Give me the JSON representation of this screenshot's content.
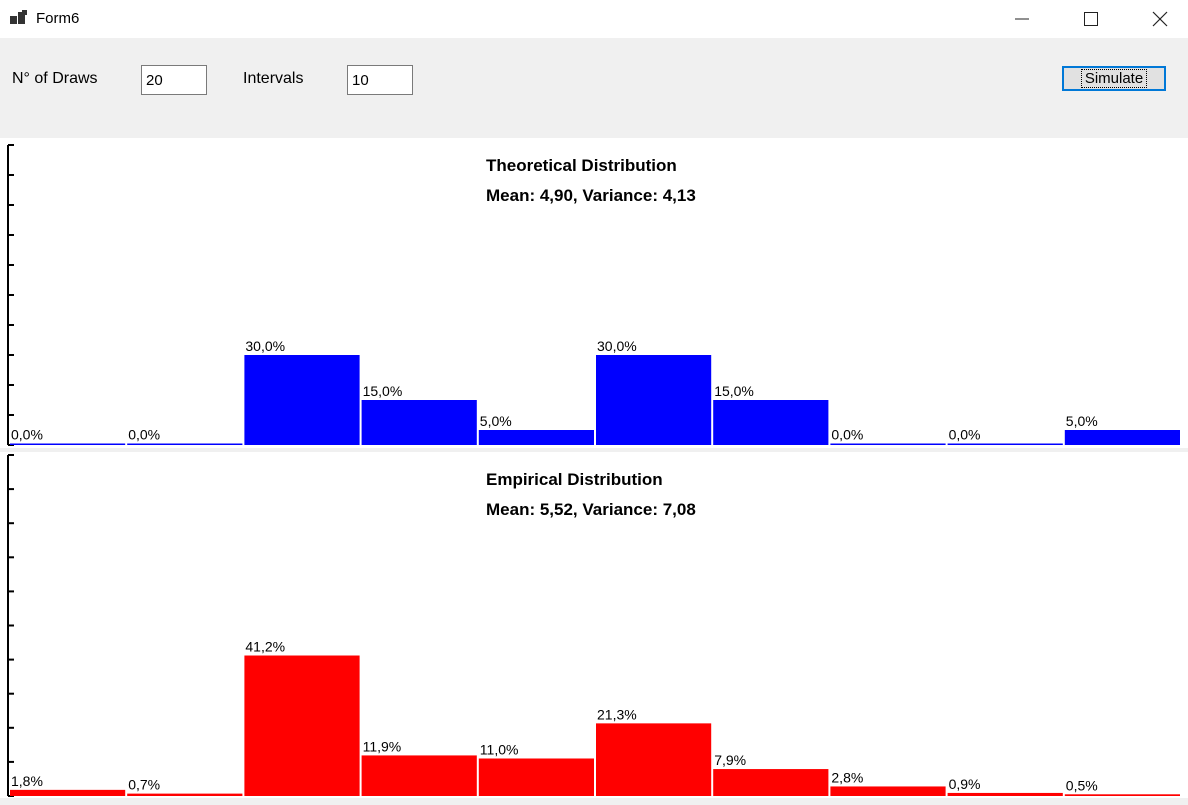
{
  "window": {
    "title": "Form6",
    "min_icon": "minimize-icon",
    "max_icon": "maximize-icon",
    "close_icon": "close-icon"
  },
  "controls": {
    "draws_label": "N° of Draws",
    "draws_value": "20",
    "intervals_label": "Intervals",
    "intervals_value": "10",
    "simulate_label": "Simulate"
  },
  "chart_data": [
    {
      "type": "bar",
      "title": "Theoretical Distribution",
      "subtitle": "Mean: 4,90, Variance: 4,13",
      "color": "#0000ff",
      "ylim": [
        0,
        100
      ],
      "values": [
        0.0,
        0.0,
        30.0,
        15.0,
        5.0,
        30.0,
        15.0,
        0.0,
        0.0,
        5.0
      ],
      "labels": [
        "0,0%",
        "0,0%",
        "30,0%",
        "15,0%",
        "5,0%",
        "30,0%",
        "15,0%",
        "0,0%",
        "0,0%",
        "5,0%"
      ]
    },
    {
      "type": "bar",
      "title": "Empirical Distribution",
      "subtitle": "Mean: 5,52, Variance: 7,08",
      "color": "#ff0000",
      "ylim": [
        0,
        100
      ],
      "values": [
        1.8,
        0.7,
        41.2,
        11.9,
        11.0,
        21.3,
        7.9,
        2.8,
        0.9,
        0.5
      ],
      "labels": [
        "1,8%",
        "0,7%",
        "41,2%",
        "11,9%",
        "11,0%",
        "21,3%",
        "7,9%",
        "2,8%",
        "0,9%",
        "0,5%"
      ]
    }
  ]
}
